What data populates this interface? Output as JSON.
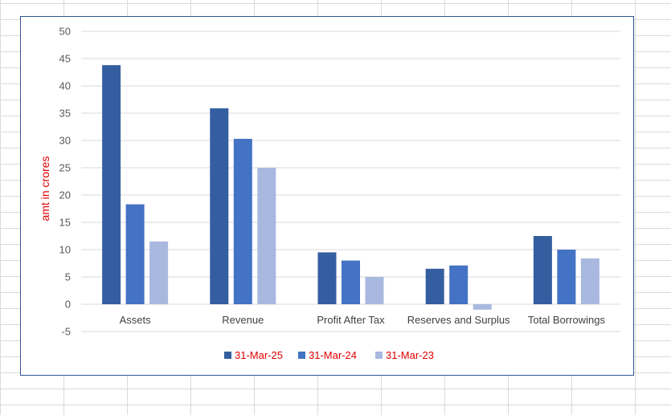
{
  "chart_data": {
    "type": "bar",
    "title": "",
    "xlabel": "",
    "ylabel": "amt in crores",
    "categories": [
      "Assets",
      "Revenue",
      "Profit After Tax",
      "Reserves and Surplus",
      "Total Borrowings"
    ],
    "series": [
      {
        "name": "31-Mar-25",
        "color": "#355ea0",
        "values": [
          43.8,
          35.9,
          9.5,
          6.5,
          12.5
        ]
      },
      {
        "name": "31-Mar-24",
        "color": "#4472c4",
        "values": [
          18.3,
          30.3,
          8.0,
          7.1,
          10.0
        ]
      },
      {
        "name": "31-Mar-23",
        "color": "#a9b8de",
        "values": [
          11.5,
          25.0,
          5.0,
          -1.0,
          8.4
        ]
      }
    ],
    "ylim": [
      -5,
      50
    ],
    "yticks": [
      50,
      45,
      40,
      35,
      30,
      25,
      20,
      15,
      10,
      5,
      0,
      -5
    ],
    "grid": true,
    "legend_position": "bottom"
  }
}
